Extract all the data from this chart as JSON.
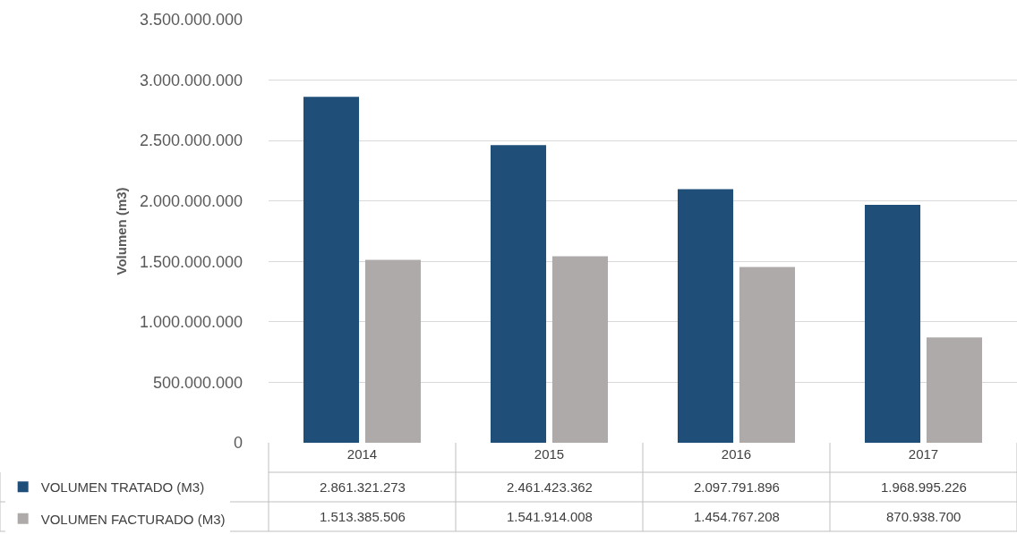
{
  "chart_data": {
    "type": "bar",
    "ylabel": "Volumen (m3)",
    "categories": [
      "2014",
      "2015",
      "2016",
      "2017"
    ],
    "series": [
      {
        "name": "VOLUMEN TRATADO (M3)",
        "color": "#1f4e79",
        "values": [
          2861321273,
          2461423362,
          2097791896,
          1968995226
        ],
        "value_labels": [
          "2.861.321.273",
          "2.461.423.362",
          "2.097.791.896",
          "1.968.995.226"
        ]
      },
      {
        "name": "VOLUMEN FACTURADO (M3)",
        "color": "#aeaaaa",
        "values": [
          1513385506,
          1541914008,
          1454767208,
          870938700
        ],
        "value_labels": [
          "1.513.385.506",
          "1.541.914.008",
          "1.454.767.208",
          "870.938.700"
        ]
      }
    ],
    "ylim": [
      0,
      3500000000
    ],
    "yticks": [
      0,
      {
        "value": 500000000,
        "label": "500.000.000"
      },
      {
        "value": 1000000000,
        "label": "1.000.000.000"
      },
      {
        "value": 1500000000,
        "label": "1.500.000.000"
      },
      {
        "value": 2000000000,
        "label": "2.000.000.000"
      },
      {
        "value": 2500000000,
        "label": "2.500.000.000"
      },
      {
        "value": 3000000000,
        "label": "3.000.000.000"
      },
      {
        "value": 3500000000,
        "label": "3.500.000.000"
      }
    ],
    "grid": "y",
    "legend": "bottom left"
  }
}
